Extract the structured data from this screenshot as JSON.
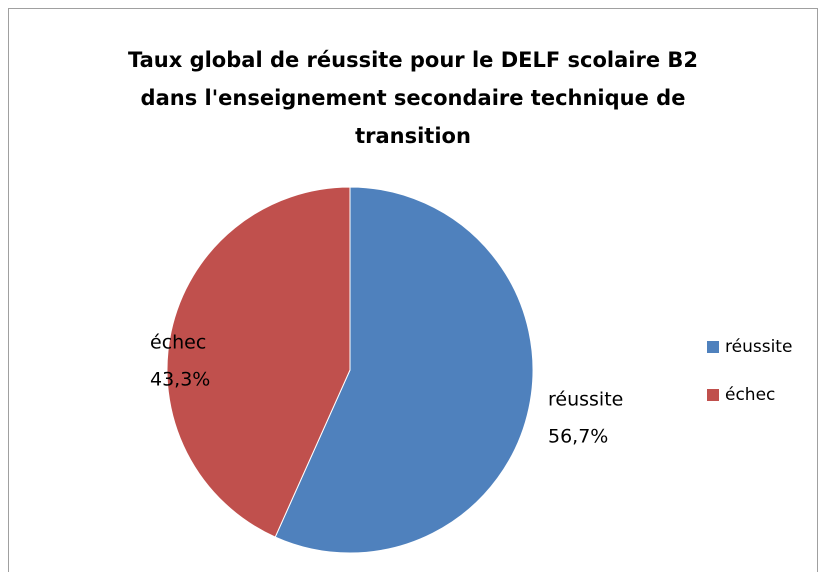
{
  "chart_data": {
    "type": "pie",
    "title": [
      "Taux global de réussite pour le DELF scolaire B2",
      "dans l'enseignement secondaire technique de",
      "transition"
    ],
    "categories": [
      "réussite",
      "échec"
    ],
    "values": [
      56.7,
      43.3
    ],
    "value_labels": [
      "56,7%",
      "43,3%"
    ],
    "colors": [
      "#4f81bd",
      "#c0504d"
    ],
    "legend": "right"
  }
}
